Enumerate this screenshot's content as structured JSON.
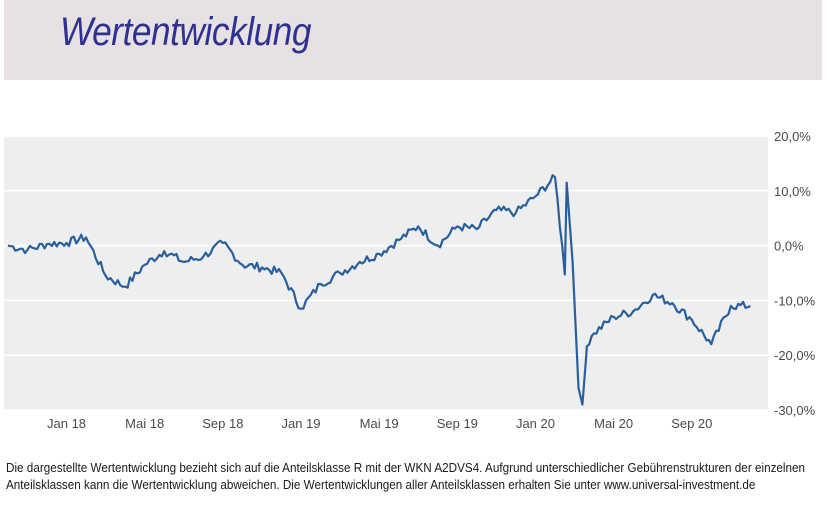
{
  "header": {
    "title": "Wertentwicklung"
  },
  "footnote": "Die dargestellte Wertentwicklung bezieht sich auf die Anteilsklasse R mit der WKN A2DVS4. Aufgrund unterschiedlicher Gebührenstrukturen der einzelnen Anteilsklassen kann die Wertentwicklung abweichen. Die Wertentwicklungen aller Anteilsklassen erhalten Sie unter www.universal-investment.de",
  "colors": {
    "line": "#2a5f9e",
    "plot_background": "#eeeeee",
    "header_background": "#e7e1e2",
    "title": "#2e3192"
  },
  "chart_data": {
    "type": "line",
    "title": "",
    "xlabel": "",
    "ylabel": "",
    "x_tick_labels": [
      "Jan 18",
      "Mai 18",
      "Sep 18",
      "Jan 19",
      "Mai 19",
      "Sep 19",
      "Jan 20",
      "Mai 20",
      "Sep 20"
    ],
    "y_tick_labels": [
      "20,0%",
      "10,0%",
      "0,0%",
      "-10,0%",
      "-20,0%",
      "-30,0%"
    ],
    "y_ticks": [
      20,
      10,
      0,
      -10,
      -20,
      -30
    ],
    "ylim": [
      -30,
      20
    ],
    "xlim": [
      "2017-10",
      "2020-12"
    ],
    "grid": true,
    "y_axis_position": "right",
    "series": [
      {
        "values": [
          [
            "2017-10",
            0.0
          ],
          [
            "2017-11",
            -0.8
          ],
          [
            "2017-12",
            0.3
          ],
          [
            "2018-01",
            0.5
          ],
          [
            "2018-02",
            1.5
          ],
          [
            "2018-03",
            -5.5
          ],
          [
            "2018-04",
            -7.5
          ],
          [
            "2018-05",
            -3.5
          ],
          [
            "2018-06",
            -1.0
          ],
          [
            "2018-07",
            -3.0
          ],
          [
            "2018-08",
            -2.0
          ],
          [
            "2018-09",
            0.5
          ],
          [
            "2018-10",
            -3.5
          ],
          [
            "2018-11",
            -4.0
          ],
          [
            "2018-12",
            -5.0
          ],
          [
            "2019-01",
            -11.5
          ],
          [
            "2019-02",
            -7.0
          ],
          [
            "2019-03",
            -5.0
          ],
          [
            "2019-04",
            -3.0
          ],
          [
            "2019-05",
            -1.5
          ],
          [
            "2019-06",
            1.0
          ],
          [
            "2019-07",
            3.5
          ],
          [
            "2019-08",
            0.0
          ],
          [
            "2019-09",
            3.5
          ],
          [
            "2019-10",
            3.0
          ],
          [
            "2019-11",
            6.5
          ],
          [
            "2019-12",
            6.0
          ],
          [
            "2020-01",
            9.0
          ],
          [
            "2020-02",
            12.5
          ],
          [
            "2020-03",
            -22.0
          ],
          [
            "2020-04",
            -16.0
          ],
          [
            "2020-05",
            -13.0
          ],
          [
            "2020-06",
            -12.0
          ],
          [
            "2020-07",
            -9.0
          ],
          [
            "2020-08",
            -10.5
          ],
          [
            "2020-09",
            -13.5
          ],
          [
            "2020-10",
            -18.0
          ],
          [
            "2020-11",
            -11.0
          ],
          [
            "2020-12",
            -11.0
          ]
        ]
      }
    ]
  }
}
